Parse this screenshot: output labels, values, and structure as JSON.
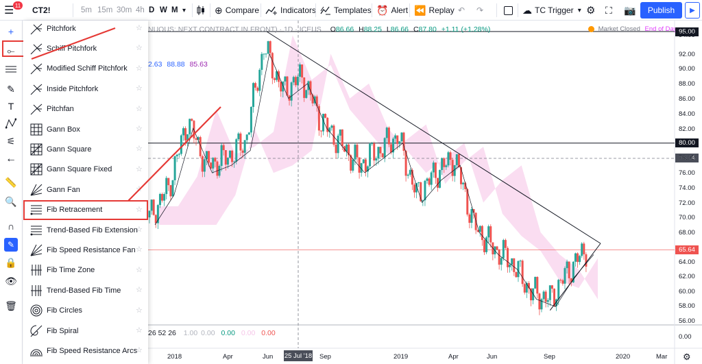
{
  "topbar": {
    "badge": "11",
    "symbol": "CT2!",
    "timeframes": [
      "5m",
      "15m",
      "30m",
      "4h",
      "D",
      "W",
      "M"
    ],
    "active_timeframe": "W",
    "compare": "Compare",
    "indicators": "Indicators",
    "templates": "Templates",
    "alert": "Alert",
    "replay": "Replay",
    "tc_trigger": "TC Trigger",
    "publish": "Publish"
  },
  "legend": {
    "title": "NUOUS: NEXT CONTRACT IN FRONT) · 1D · ICEUS",
    "o": "O",
    "o_val": "86.66",
    "h": "H",
    "h_val": "88.25",
    "l": "L",
    "l_val": "86.66",
    "c": "C",
    "c_val": "87.80",
    "chg": "+1.11 (+1.28%)",
    "ind2_a": "2.63",
    "ind2_b": "88.88",
    "ind2_c": "85.63",
    "ind3": "26 52 26",
    "ind3_vals": [
      "1.00",
      "0.00",
      "0.00",
      "0.00",
      "0.00"
    ],
    "market_status": "Market Closed",
    "end_of_day": "End of Day"
  },
  "price_axis": {
    "labels": [
      "94.00",
      "92.00",
      "90.00",
      "88.00",
      "86.00",
      "84.00",
      "82.00",
      "78.00",
      "76.00",
      "74.00",
      "72.00",
      "70.00",
      "68.00",
      "64.00",
      "62.00",
      "60.00",
      "58.00",
      "56.00",
      "0.00"
    ],
    "tag_top": "95.00",
    "tag_80": "80.00",
    "tag_cross": "78.04",
    "tag_last": "65.64"
  },
  "time_axis": {
    "labels": [
      "2018",
      "Apr",
      "Jun",
      "Sep",
      "2019",
      "Apr",
      "Jun",
      "Sep",
      "2020",
      "Mar"
    ],
    "crosshair_date": "25 Jul '18"
  },
  "menu": {
    "items": [
      {
        "label": "Pitchfork",
        "icon": "pitchfork-icon"
      },
      {
        "label": "Schiff Pitchfork",
        "icon": "schiff-pitchfork-icon"
      },
      {
        "label": "Modified Schiff Pitchfork",
        "icon": "modified-schiff-pitchfork-icon"
      },
      {
        "label": "Inside Pitchfork",
        "icon": "inside-pitchfork-icon"
      },
      {
        "label": "Pitchfan",
        "icon": "pitchfan-icon"
      },
      {
        "label": "Gann Box",
        "icon": "gann-box-icon"
      },
      {
        "label": "Gann Square",
        "icon": "gann-square-icon"
      },
      {
        "label": "Gann Square Fixed",
        "icon": "gann-square-fixed-icon"
      },
      {
        "label": "Gann Fan",
        "icon": "gann-fan-icon"
      },
      {
        "label": "Fib Retracement",
        "icon": "fib-retracement-icon"
      },
      {
        "label": "Trend-Based Fib Extension",
        "icon": "trend-fib-extension-icon"
      },
      {
        "label": "Fib Speed Resistance Fan",
        "icon": "fib-speed-fan-icon"
      },
      {
        "label": "Fib Time Zone",
        "icon": "fib-time-zone-icon"
      },
      {
        "label": "Trend-Based Fib Time",
        "icon": "trend-fib-time-icon"
      },
      {
        "label": "Fib Circles",
        "icon": "fib-circles-icon"
      },
      {
        "label": "Fib Spiral",
        "icon": "fib-spiral-icon"
      },
      {
        "label": "Fib Speed Resistance Arcs",
        "icon": "fib-speed-arcs-icon"
      }
    ],
    "highlighted": "Fib Retracement"
  },
  "colors": {
    "accent": "#2962ff",
    "up": "#26a69a",
    "down": "#ef5350",
    "annotation": "#e53935",
    "cloud": "#f6c6e8",
    "cloud_green": "#d4e8f5"
  },
  "chart_data": {
    "type": "candlestick",
    "x_unit": "date",
    "y_unit": "price",
    "close_series": [
      [
        "2017-12",
        70
      ],
      [
        "2018-01",
        74
      ],
      [
        "2018-02",
        83
      ],
      [
        "2018-03",
        77
      ],
      [
        "2018-04",
        78
      ],
      [
        "2018-05",
        80
      ],
      [
        "2018-06",
        93
      ],
      [
        "2018-07",
        87
      ],
      [
        "2018-08",
        89
      ],
      [
        "2018-09",
        83
      ],
      [
        "2018-10",
        80
      ],
      [
        "2018-11",
        77
      ],
      [
        "2018-12",
        79
      ],
      [
        "2019-01",
        81
      ],
      [
        "2019-02",
        73
      ],
      [
        "2019-03",
        76
      ],
      [
        "2019-04",
        78
      ],
      [
        "2019-05",
        69
      ],
      [
        "2019-06",
        66
      ],
      [
        "2019-07",
        64
      ],
      [
        "2019-08",
        60
      ],
      [
        "2019-09",
        59
      ],
      [
        "2019-10",
        63
      ],
      [
        "2019-11",
        66
      ]
    ],
    "horizontal_lines": [
      95.0,
      80.0,
      65.64
    ],
    "trendline_upper": {
      "from": [
        "2018-06",
        95.0
      ],
      "to": [
        "2019-11",
        66.5
      ]
    },
    "trendline_lower": {
      "from": [
        "2019-09",
        57.5
      ],
      "to": [
        "2019-11",
        66.5
      ]
    },
    "ylim": [
      56,
      95
    ]
  }
}
